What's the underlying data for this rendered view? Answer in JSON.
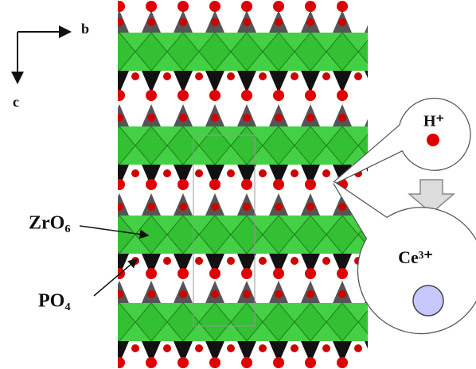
{
  "axes": {
    "horizontal": "b",
    "vertical": "c"
  },
  "labels": {
    "octahedra": "ZrO₆",
    "tetrahedra": "PO₄"
  },
  "callouts": {
    "proton": "H⁺",
    "cerium": "Ce³⁺"
  }
}
